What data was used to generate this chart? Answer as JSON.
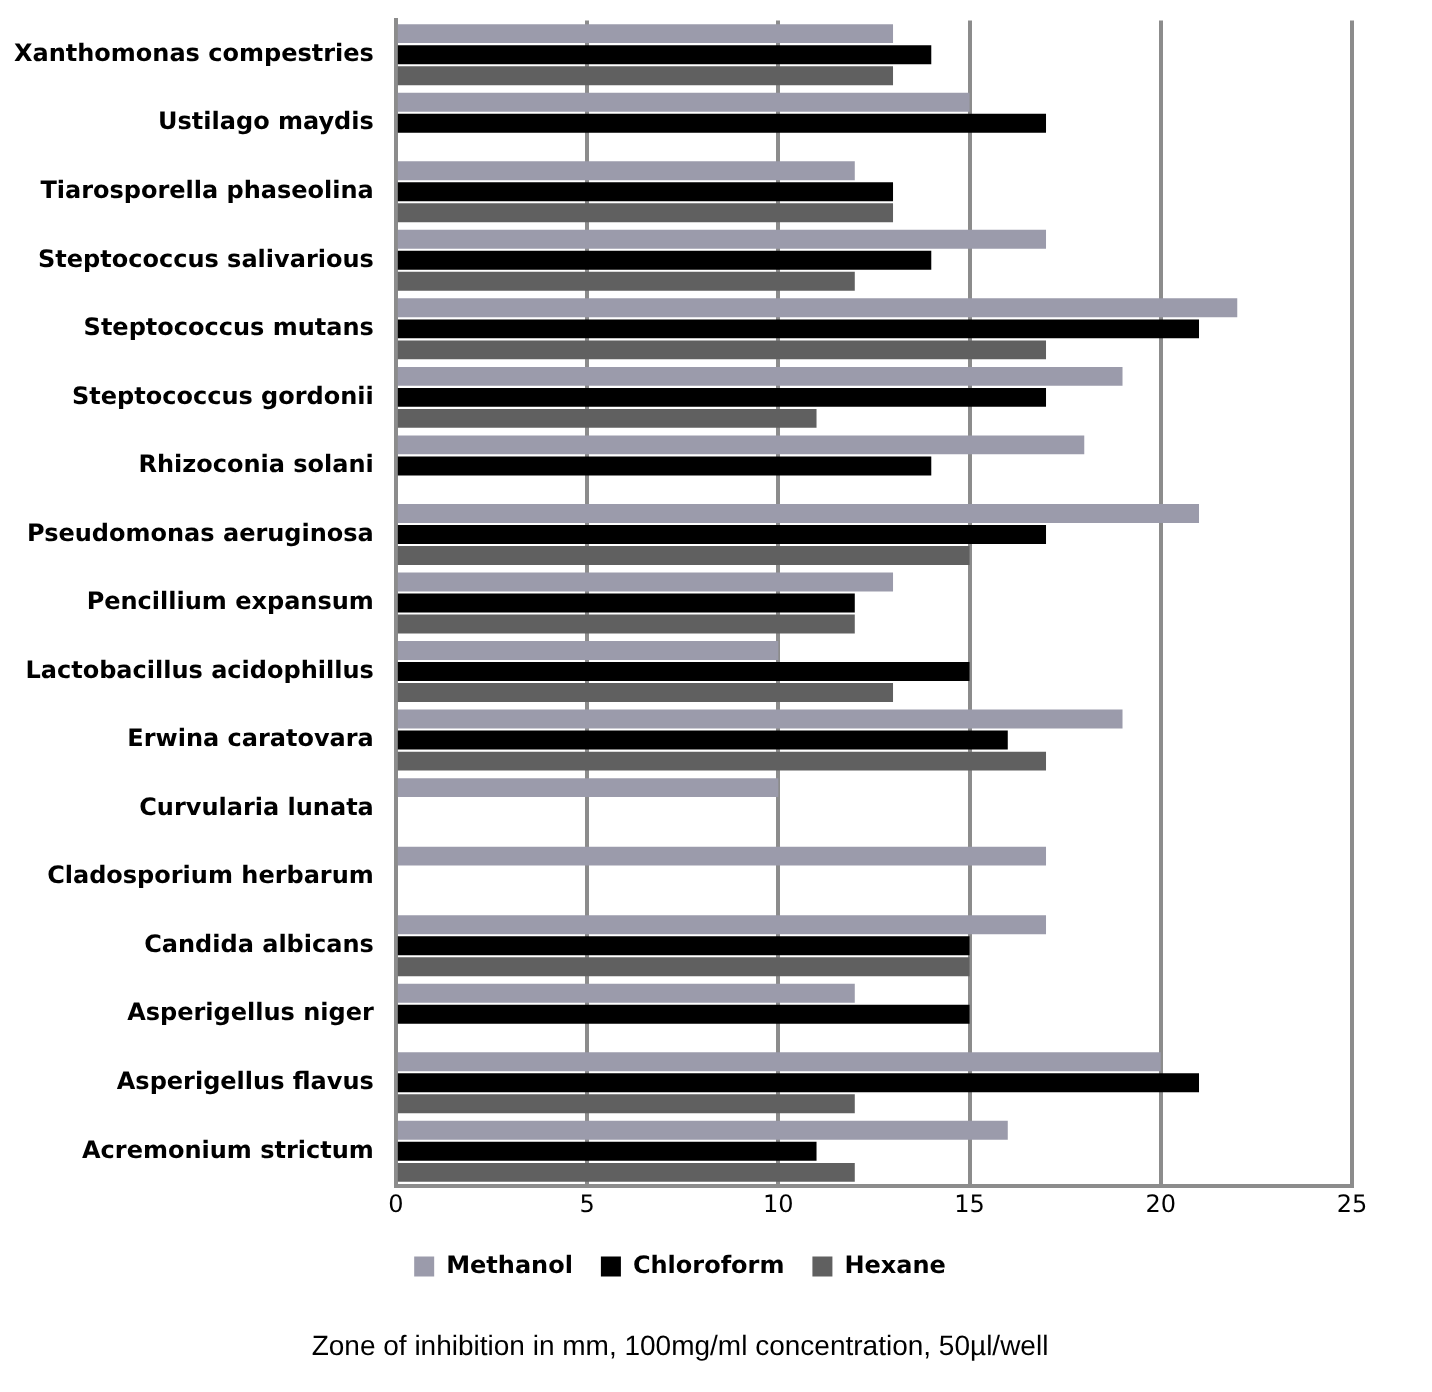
{
  "chart_data": {
    "type": "bar",
    "orientation": "horizontal",
    "categories": [
      "Xanthomonas compestries",
      "Ustilago maydis",
      "Tiarosporella phaseolina",
      "Steptococcus salivarious",
      "Steptococcus mutans",
      "Steptococcus gordonii",
      "Rhizoconia solani",
      "Pseudomonas aeruginosa",
      "Pencillium expansum",
      "Lactobacillus acidophillus",
      "Erwina caratovara",
      "Curvularia lunata",
      "Cladosporium herbarum",
      "Candida albicans",
      "Asperigellus niger",
      "Asperigellus flavus",
      "Acremonium strictum"
    ],
    "series": [
      {
        "name": "Methanol",
        "color": "#9b9bab",
        "values": [
          13,
          15,
          12,
          17,
          22,
          19,
          18,
          21,
          13,
          10,
          19,
          10,
          17,
          17,
          12,
          20,
          16
        ]
      },
      {
        "name": "Chloroform",
        "color": "#000000",
        "values": [
          14,
          17,
          13,
          14,
          21,
          17,
          14,
          17,
          12,
          15,
          16,
          null,
          null,
          15,
          15,
          21,
          11
        ]
      },
      {
        "name": "Hexane",
        "color": "#606060",
        "values": [
          13,
          null,
          13,
          12,
          17,
          11,
          null,
          15,
          12,
          13,
          17,
          null,
          null,
          15,
          null,
          12,
          12
        ]
      }
    ],
    "xlim": [
      0,
      25
    ],
    "xticks": [
      0,
      5,
      10,
      15,
      20,
      25
    ],
    "xlabel": "Zone of inhibition in mm, 100mg/ml concentration, 50µl/well",
    "grid": "x",
    "legend": "bottom"
  }
}
